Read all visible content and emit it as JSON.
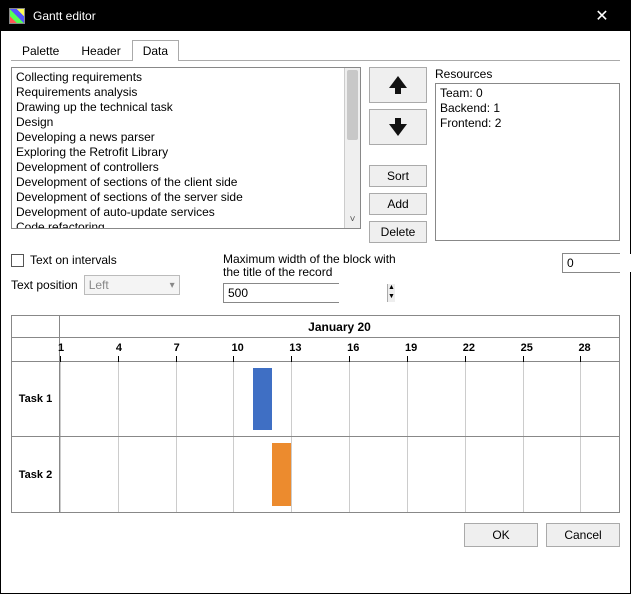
{
  "window": {
    "title": "Gantt editor"
  },
  "tabs": [
    {
      "label": "Palette",
      "active": false
    },
    {
      "label": "Header",
      "active": false
    },
    {
      "label": "Data",
      "active": true
    }
  ],
  "task_list": [
    "Collecting requirements",
    "Requirements analysis",
    "Drawing up the technical task",
    "Design",
    "Developing a news parser",
    "Exploring the Retrofit Library",
    "Development of controllers",
    "Development of sections of the client side",
    "Development of sections of the server side",
    "Development of auto-update services",
    "Code refactoring"
  ],
  "buttons": {
    "sort": "Sort",
    "add": "Add",
    "delete": "Delete",
    "ok": "OK",
    "cancel": "Cancel"
  },
  "resources": {
    "label": "Resources",
    "items": [
      {
        "name": "Team",
        "value": 0
      },
      {
        "name": "Backend",
        "value": 1
      },
      {
        "name": "Frontend",
        "value": 2
      }
    ]
  },
  "options": {
    "text_on_intervals_label": "Text on intervals",
    "text_on_intervals_checked": false,
    "text_position_label": "Text position",
    "text_position_value": "Left",
    "max_width_label": "Maximum width of the block with the title of the record",
    "max_width_value": "500",
    "right_spin_value": "0"
  },
  "gantt": {
    "month_label": "January 20",
    "axis": {
      "start": 1,
      "end": 30,
      "ticks": [
        1,
        4,
        7,
        10,
        13,
        16,
        19,
        22,
        25,
        28
      ]
    },
    "grid_color": "#cccccc",
    "rows": [
      {
        "label": "Task 1",
        "bar_start": 11,
        "bar_end": 12,
        "color": "#3f6fc4"
      },
      {
        "label": "Task 2",
        "bar_start": 12,
        "bar_end": 13,
        "color": "#ec8b2e"
      }
    ]
  },
  "colors": {
    "titlebar_bg": "#000000",
    "titlebar_fg": "#ffffff",
    "button_bg": "#efefef",
    "border": "#888888"
  }
}
